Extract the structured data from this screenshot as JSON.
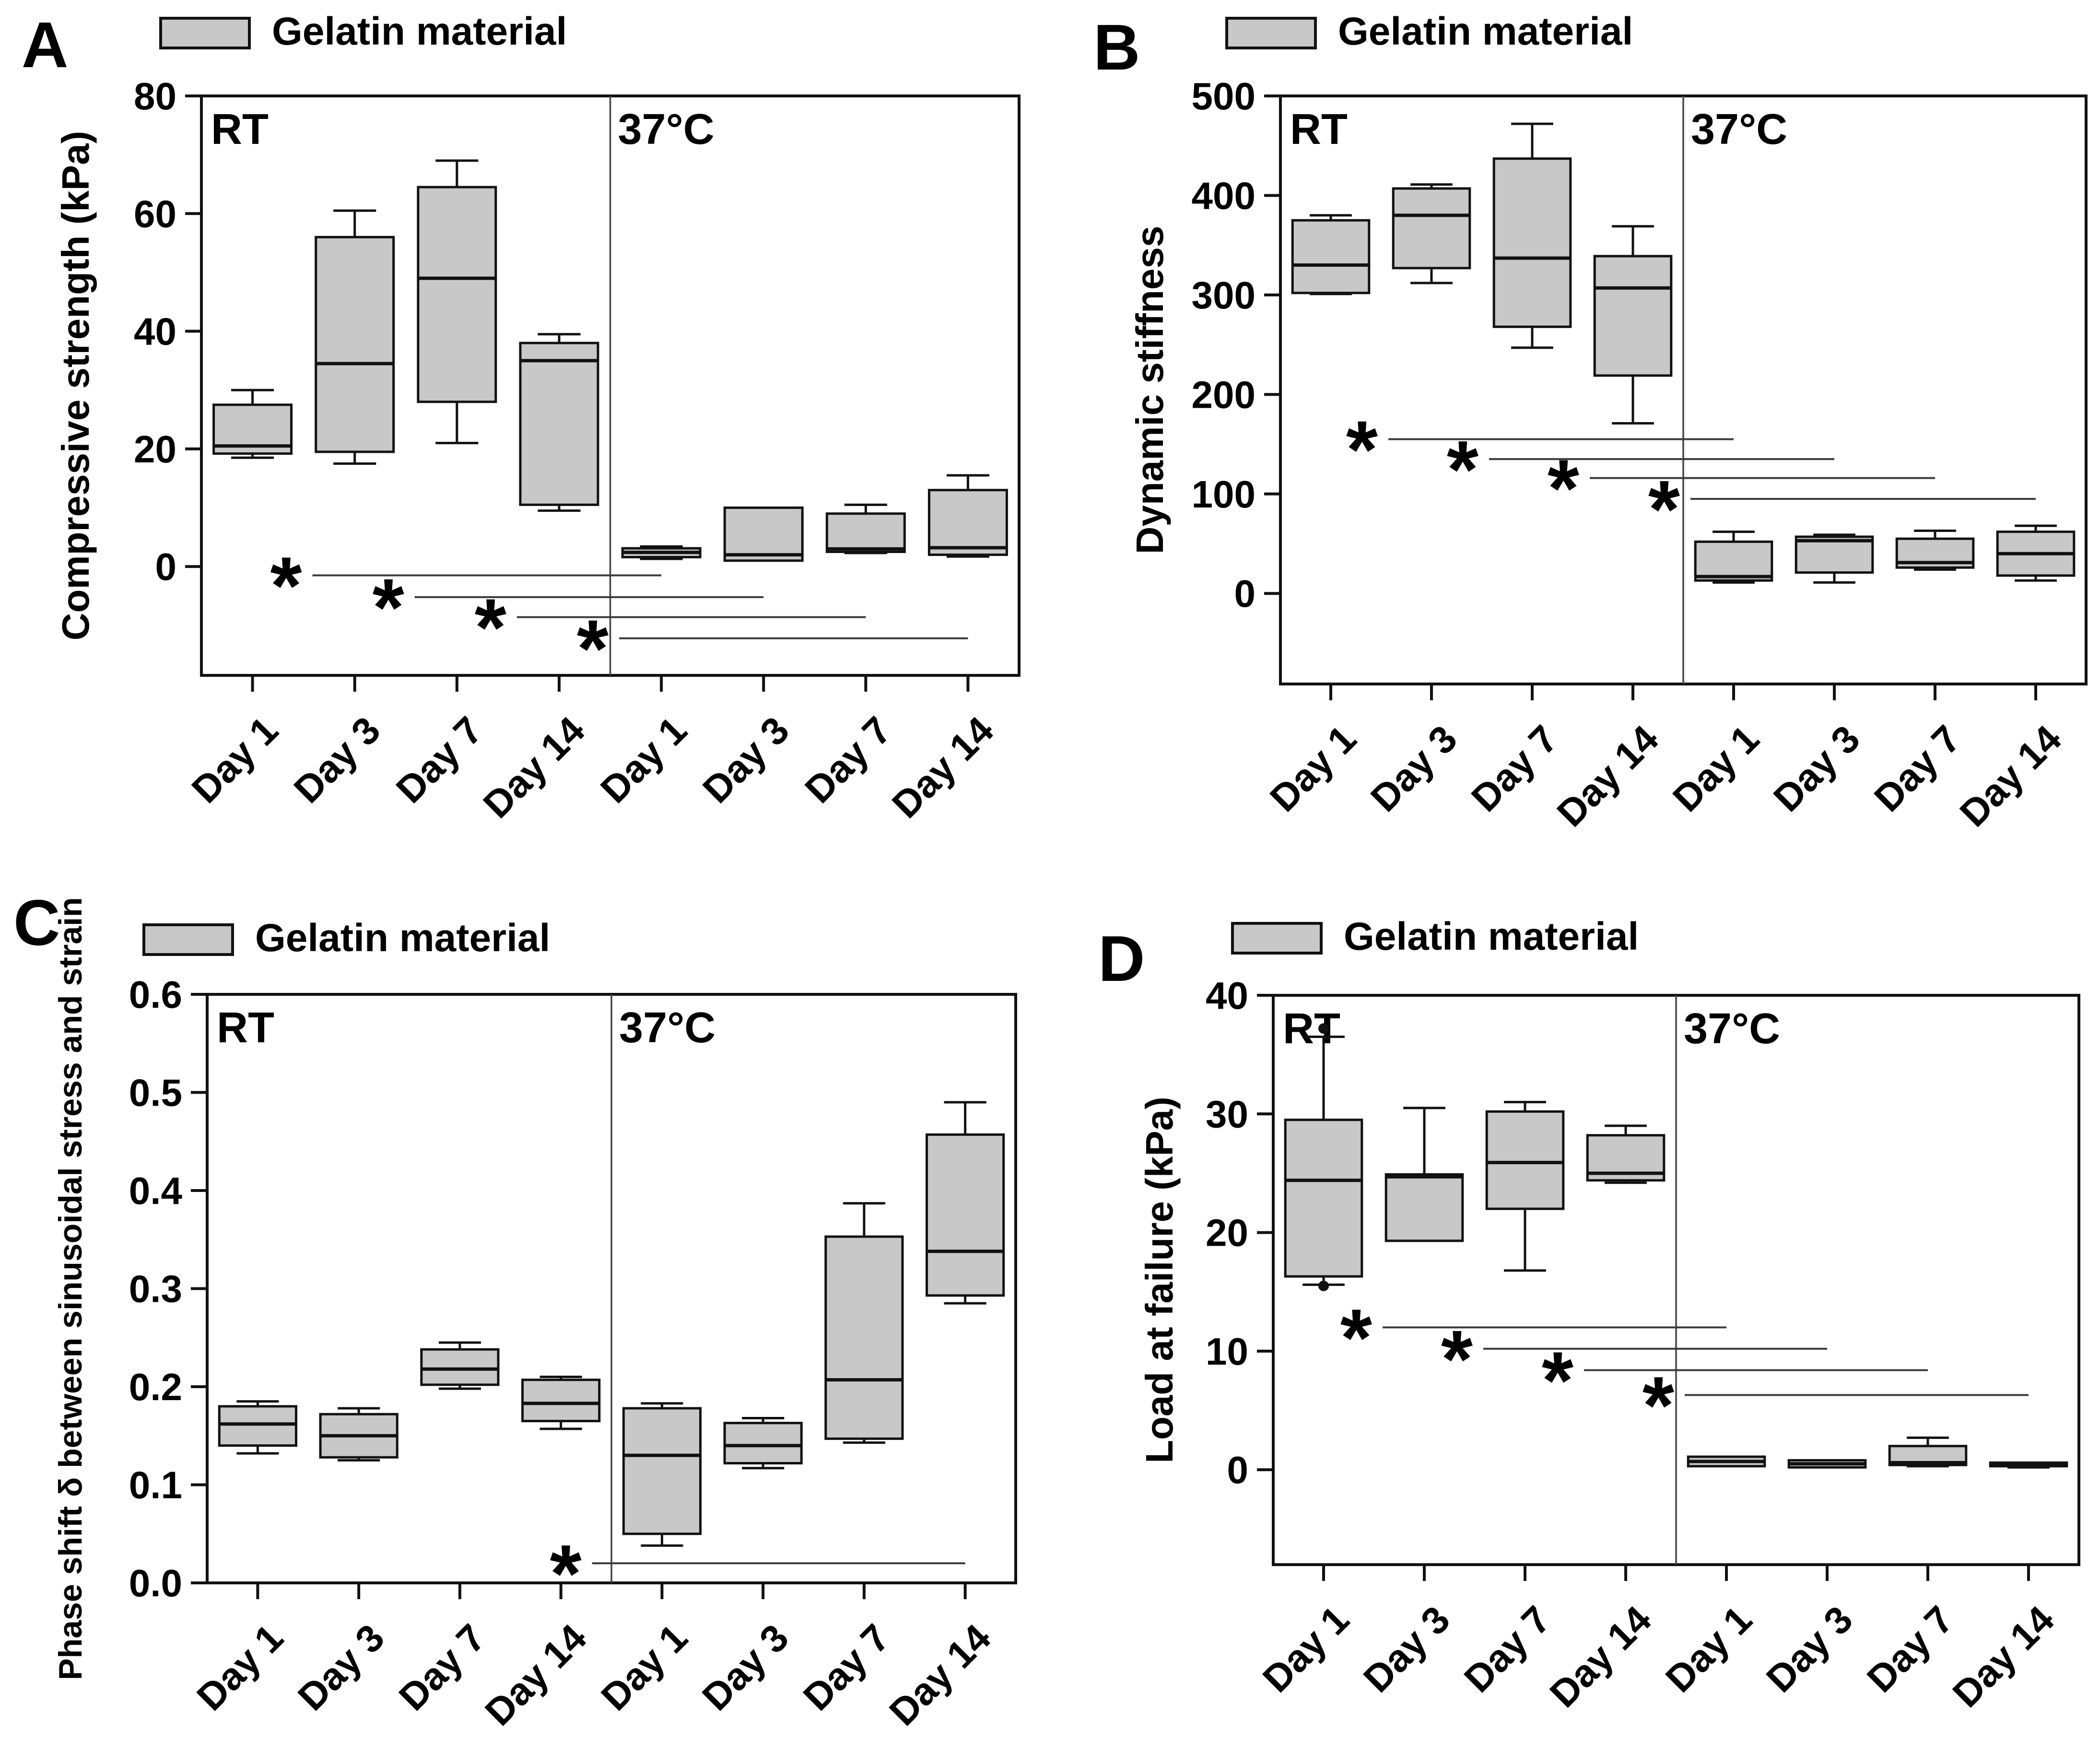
{
  "figure": {
    "background": "#ffffff",
    "box_fill": "#c8c8c8",
    "box_stroke": "#111111",
    "sig_line_color": "#3a3a3a",
    "legend_label": "Gelatin material"
  },
  "chart_data": [
    {
      "panel": "A",
      "type": "box",
      "legend": "Gelatin material",
      "ylabel": "Compressive strength (kPa)",
      "ylim": [
        -18.5,
        80
      ],
      "ytick_values": [
        0,
        20,
        40,
        60,
        80
      ],
      "ytick_labels": [
        "0",
        "20",
        "40",
        "60",
        "80"
      ],
      "sections": [
        {
          "label": "RT",
          "boxes": [
            {
              "category": "Day 1",
              "low": 18.5,
              "q1": 19.2,
              "median": 20.5,
              "q3": 27.5,
              "high": 30
            },
            {
              "category": "Day 3",
              "low": 17.5,
              "q1": 19.5,
              "median": 34.5,
              "q3": 56,
              "high": 60.5
            },
            {
              "category": "Day 7",
              "low": 21,
              "q1": 28,
              "median": 49,
              "q3": 64.5,
              "high": 69
            },
            {
              "category": "Day 14",
              "low": 9.5,
              "q1": 10.5,
              "median": 35,
              "q3": 38,
              "high": 39.5
            }
          ]
        },
        {
          "label": "37°C",
          "boxes": [
            {
              "category": "Day 1",
              "low": 1.3,
              "q1": 1.6,
              "median": 2.4,
              "q3": 3.1,
              "high": 3.4
            },
            {
              "category": "Day 3",
              "low": 1.0,
              "q1": 1.0,
              "median": 2.0,
              "q3": 10.0,
              "high": 10.0
            },
            {
              "category": "Day 7",
              "low": 2.3,
              "q1": 2.5,
              "median": 3.0,
              "q3": 9.0,
              "high": 10.5
            },
            {
              "category": "Day 14",
              "low": 1.7,
              "q1": 2.0,
              "median": 3.2,
              "q3": 13.0,
              "high": 15.5
            }
          ]
        }
      ],
      "significance": [
        {
          "from": 0,
          "to": 4,
          "y": -1.5
        },
        {
          "from": 1,
          "to": 5,
          "y": -5.2
        },
        {
          "from": 2,
          "to": 6,
          "y": -8.6
        },
        {
          "from": 3,
          "to": 7,
          "y": -12.2
        }
      ]
    },
    {
      "panel": "B",
      "type": "box",
      "legend": "Gelatin material",
      "ylabel": "Dynamic stiffness",
      "ylim": [
        -91,
        500
      ],
      "ytick_values": [
        0,
        100,
        200,
        300,
        400,
        500
      ],
      "ytick_labels": [
        "0",
        "100",
        "200",
        "300",
        "400",
        "500"
      ],
      "sections": [
        {
          "label": "RT",
          "boxes": [
            {
              "category": "Day 1",
              "low": 301,
              "q1": 302,
              "median": 330,
              "q3": 375,
              "high": 380
            },
            {
              "category": "Day 3",
              "low": 312,
              "q1": 327,
              "median": 380,
              "q3": 407,
              "high": 411
            },
            {
              "category": "Day 7",
              "low": 247,
              "q1": 268,
              "median": 337,
              "q3": 437,
              "high": 472
            },
            {
              "category": "Day 14",
              "low": 171,
              "q1": 219,
              "median": 307,
              "q3": 339,
              "high": 369
            }
          ]
        },
        {
          "label": "37°C",
          "boxes": [
            {
              "category": "Day 1",
              "low": 11,
              "q1": 13,
              "median": 17,
              "q3": 52,
              "high": 62
            },
            {
              "category": "Day 3",
              "low": 11,
              "q1": 21,
              "median": 53,
              "q3": 57,
              "high": 59
            },
            {
              "category": "Day 7",
              "low": 24,
              "q1": 26,
              "median": 31,
              "q3": 55,
              "high": 63
            },
            {
              "category": "Day 14",
              "low": 13,
              "q1": 18,
              "median": 40,
              "q3": 62,
              "high": 68
            }
          ]
        }
      ],
      "significance": [
        {
          "from": 0,
          "to": 4,
          "y": 155
        },
        {
          "from": 1,
          "to": 5,
          "y": 135
        },
        {
          "from": 2,
          "to": 6,
          "y": 116
        },
        {
          "from": 3,
          "to": 7,
          "y": 95
        }
      ]
    },
    {
      "panel": "C",
      "type": "box",
      "legend": "Gelatin material",
      "ylabel": "Phase shift δ between sinusoidal stress and strain",
      "ylim": [
        0,
        0.6
      ],
      "ytick_values": [
        0,
        0.1,
        0.2,
        0.3,
        0.4,
        0.5,
        0.6
      ],
      "ytick_labels": [
        "0.0",
        "0.1",
        "0.2",
        "0.3",
        "0.4",
        "0.5",
        "0.6"
      ],
      "sections": [
        {
          "label": "RT",
          "boxes": [
            {
              "category": "Day 1",
              "low": 0.132,
              "q1": 0.14,
              "median": 0.162,
              "q3": 0.18,
              "high": 0.185
            },
            {
              "category": "Day 3",
              "low": 0.125,
              "q1": 0.128,
              "median": 0.15,
              "q3": 0.172,
              "high": 0.178
            },
            {
              "category": "Day 7",
              "low": 0.198,
              "q1": 0.202,
              "median": 0.218,
              "q3": 0.238,
              "high": 0.245
            },
            {
              "category": "Day 14",
              "low": 0.157,
              "q1": 0.165,
              "median": 0.183,
              "q3": 0.207,
              "high": 0.21
            }
          ]
        },
        {
          "label": "37°C",
          "boxes": [
            {
              "category": "Day 1",
              "low": 0.038,
              "q1": 0.05,
              "median": 0.13,
              "q3": 0.178,
              "high": 0.183
            },
            {
              "category": "Day 3",
              "low": 0.117,
              "q1": 0.122,
              "median": 0.14,
              "q3": 0.163,
              "high": 0.168
            },
            {
              "category": "Day 7",
              "low": 0.143,
              "q1": 0.147,
              "median": 0.207,
              "q3": 0.353,
              "high": 0.387
            },
            {
              "category": "Day 14",
              "low": 0.285,
              "q1": 0.293,
              "median": 0.338,
              "q3": 0.457,
              "high": 0.49
            }
          ]
        }
      ],
      "significance": [
        {
          "from": 3,
          "to": 7,
          "y": 0.02
        }
      ]
    },
    {
      "panel": "D",
      "type": "box",
      "legend": "Gelatin material",
      "ylabel": "Load at failure (kPa)",
      "ylim": [
        -8,
        40
      ],
      "ytick_values": [
        0,
        10,
        20,
        30,
        40
      ],
      "ytick_labels": [
        "0",
        "10",
        "20",
        "30",
        "40"
      ],
      "sections": [
        {
          "label": "RT",
          "boxes": [
            {
              "category": "Day 1",
              "low": 15.6,
              "q1": 16.3,
              "median": 24.4,
              "q3": 29.5,
              "high": 36.5,
              "outliers": [
                37.2,
                15.5
              ]
            },
            {
              "category": "Day 3",
              "low": 19.3,
              "q1": 19.3,
              "median": 24.7,
              "q3": 24.9,
              "high": 30.5
            },
            {
              "category": "Day 7",
              "low": 16.8,
              "q1": 22.0,
              "median": 25.9,
              "q3": 30.2,
              "high": 31.0
            },
            {
              "category": "Day 14",
              "low": 24.2,
              "q1": 24.4,
              "median": 25.0,
              "q3": 28.2,
              "high": 29.0
            }
          ]
        },
        {
          "label": "37°C",
          "boxes": [
            {
              "category": "Day 1",
              "low": 0.3,
              "q1": 0.3,
              "median": 0.7,
              "q3": 1.1,
              "high": 1.1
            },
            {
              "category": "Day 3",
              "low": 0.2,
              "q1": 0.2,
              "median": 0.5,
              "q3": 0.8,
              "high": 0.8
            },
            {
              "category": "Day 7",
              "low": 0.3,
              "q1": 0.4,
              "median": 0.6,
              "q3": 2.0,
              "high": 2.7
            },
            {
              "category": "Day 14",
              "low": 0.2,
              "q1": 0.3,
              "median": 0.4,
              "q3": 0.6,
              "high": 0.6
            }
          ]
        }
      ],
      "significance": [
        {
          "from": 0,
          "to": 4,
          "y": 12
        },
        {
          "from": 1,
          "to": 5,
          "y": 10.2
        },
        {
          "from": 2,
          "to": 6,
          "y": 8.4
        },
        {
          "from": 3,
          "to": 7,
          "y": 6.3
        }
      ]
    }
  ]
}
